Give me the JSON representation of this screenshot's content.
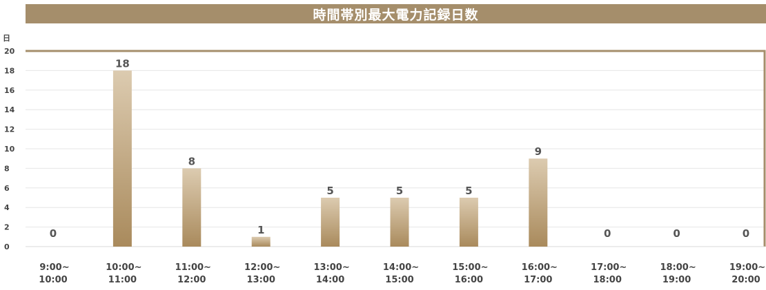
{
  "chart_data": {
    "type": "bar",
    "title": "時間帯別最大電力記録日数",
    "unit": "日",
    "categories": [
      [
        "9:00~",
        "10:00"
      ],
      [
        "10:00~",
        "11:00"
      ],
      [
        "11:00~",
        "12:00"
      ],
      [
        "12:00~",
        "13:00"
      ],
      [
        "13:00~",
        "14:00"
      ],
      [
        "14:00~",
        "15:00"
      ],
      [
        "15:00~",
        "16:00"
      ],
      [
        "16:00~",
        "17:00"
      ],
      [
        "17:00~",
        "18:00"
      ],
      [
        "18:00~",
        "19:00"
      ],
      [
        "19:00~",
        "20:00"
      ]
    ],
    "values": [
      0,
      18,
      8,
      1,
      5,
      5,
      5,
      9,
      0,
      0,
      0
    ],
    "ylim": [
      0,
      20
    ],
    "yticks": [
      0,
      2,
      4,
      6,
      8,
      10,
      12,
      14,
      16,
      18,
      20
    ],
    "grid": true,
    "colors": {
      "bar_top": "#dccbb0",
      "bar_bottom": "#a98a5c",
      "title_bg": "#a58e6b",
      "frame": "#a58e6b"
    }
  }
}
